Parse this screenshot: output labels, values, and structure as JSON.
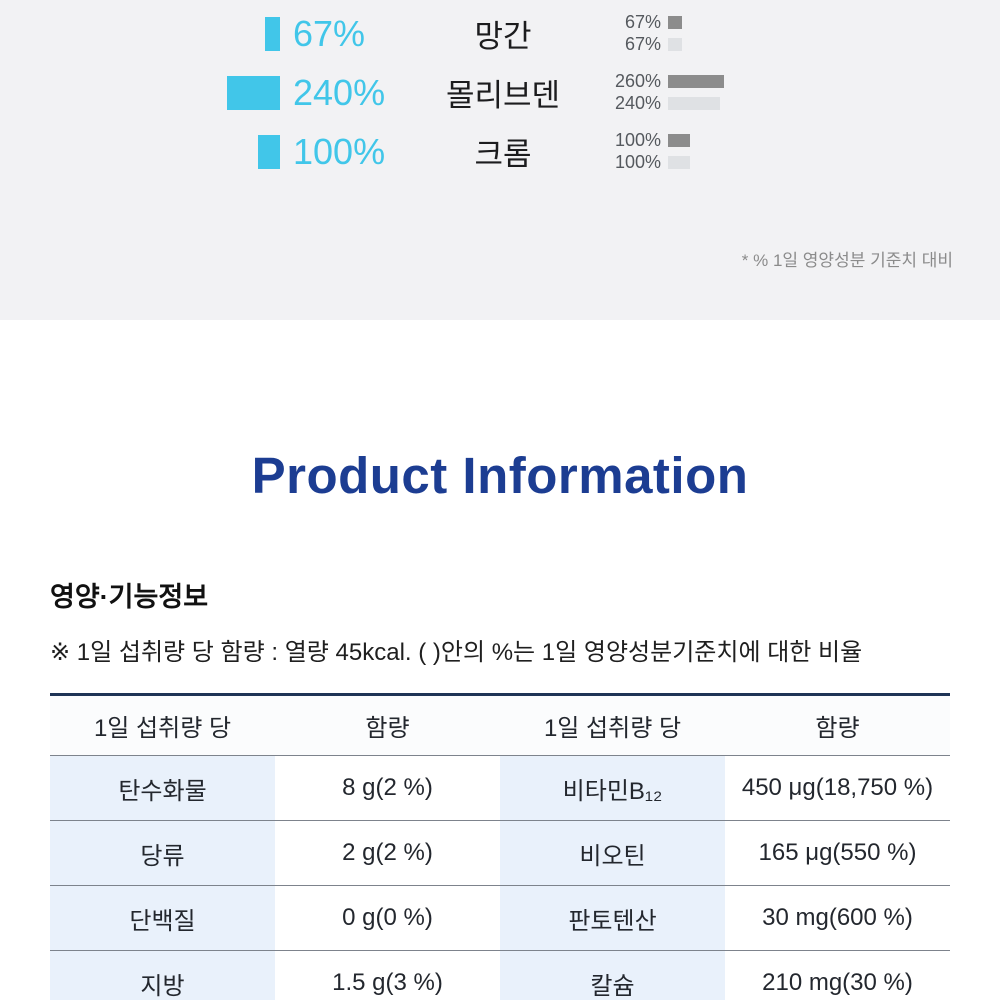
{
  "colors": {
    "accent_cyan": "#41c6e9",
    "bar_dark_gray": "#8c8c8c",
    "bar_light_gray": "#dfe1e4",
    "title_navy": "#1c3d92",
    "table_top_border": "#1f3456",
    "table_column_highlight": "#e9f1fb",
    "chart_section_bg": "#f2f2f4"
  },
  "chart_data": {
    "type": "bar",
    "categories": [
      "망간",
      "몰리브덴",
      "크롬"
    ],
    "series": [
      {
        "name": "daily-intake-cyan",
        "values": [
          67,
          240,
          100
        ],
        "labels": [
          "67%",
          "240%",
          "100%"
        ],
        "color": "#41c6e9"
      },
      {
        "name": "reference-dark",
        "values": [
          67,
          260,
          100
        ],
        "labels": [
          "67%",
          "260%",
          "100%"
        ],
        "color": "#8c8c8c"
      },
      {
        "name": "reference-light",
        "values": [
          67,
          240,
          100
        ],
        "labels": [
          "67%",
          "240%",
          "100%"
        ],
        "color": "#dfe1e4"
      }
    ],
    "footnote": "* % 1일 영양성분 기준치 대비",
    "legend_position": "none",
    "axis_labels": "none"
  },
  "title": {
    "text": "Product Information"
  },
  "nutrition": {
    "heading": "영양·기능정보",
    "note": "※ 1일 섭취량 당 함량 : 열량 45kcal. ( )안의 %는 1일 영양성분기준치에 대한 비율",
    "table": {
      "headers": [
        "1일 섭취량 당",
        "함량",
        "1일 섭취량 당",
        "함량"
      ],
      "rows": [
        [
          "탄수화물",
          "8 g(2 %)",
          "비타민B₁₂",
          "450 μg(18,750 %)"
        ],
        [
          "당류",
          "2 g(2 %)",
          "비오틴",
          "165 μg(550 %)"
        ],
        [
          "단백질",
          "0 g(0 %)",
          "판토텐산",
          "30 mg(600 %)"
        ],
        [
          "지방",
          "1.5 g(3 %)",
          "칼슘",
          "210 mg(30 %)"
        ]
      ]
    }
  }
}
